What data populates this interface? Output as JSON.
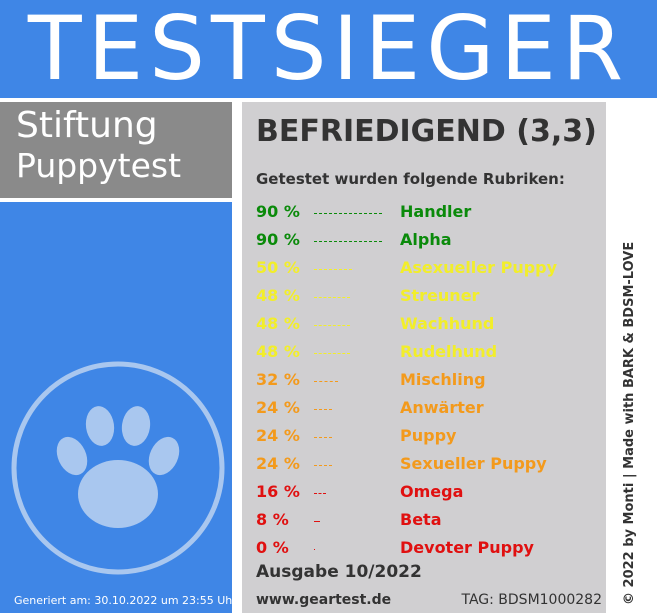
{
  "header": {
    "title": "TESTSIEGER"
  },
  "organization": {
    "line1": "Stiftung",
    "line2": "Puppytest"
  },
  "logo": {
    "icon": "paw-icon"
  },
  "result": {
    "verdict": "BEFRIEDIGEND (3,3)",
    "subtitle": "Getestet wurden folgende Rubriken:",
    "rows": [
      {
        "percent": "90 %",
        "percent_value": 90,
        "category": "Handler",
        "color": "#0a8a0a"
      },
      {
        "percent": "90 %",
        "percent_value": 90,
        "category": "Alpha",
        "color": "#0a8a0a"
      },
      {
        "percent": "50 %",
        "percent_value": 50,
        "category": "Asexueller Puppy",
        "color": "#f2ee2a"
      },
      {
        "percent": "48 %",
        "percent_value": 48,
        "category": "Streuner",
        "color": "#f2ee2a"
      },
      {
        "percent": "48 %",
        "percent_value": 48,
        "category": "Wachhund",
        "color": "#f2ee2a"
      },
      {
        "percent": "48 %",
        "percent_value": 48,
        "category": "Rudelhund",
        "color": "#f2ee2a"
      },
      {
        "percent": "32 %",
        "percent_value": 32,
        "category": "Mischling",
        "color": "#f39a1c"
      },
      {
        "percent": "24 %",
        "percent_value": 24,
        "category": "Anwärter",
        "color": "#f39a1c"
      },
      {
        "percent": "24 %",
        "percent_value": 24,
        "category": "Puppy",
        "color": "#f39a1c"
      },
      {
        "percent": "24 %",
        "percent_value": 24,
        "category": "Sexueller Puppy",
        "color": "#f39a1c"
      },
      {
        "percent": "16 %",
        "percent_value": 16,
        "category": "Omega",
        "color": "#e01010"
      },
      {
        "percent": "8 %",
        "percent_value": 8,
        "category": "Beta",
        "color": "#e01010"
      },
      {
        "percent": "0 %",
        "percent_value": 0,
        "category": "Devoter Puppy",
        "color": "#e01010"
      }
    ],
    "issue": "Ausgabe 10/2022",
    "website": "www.geartest.de",
    "tag": "TAG: BDSM1000282"
  },
  "footer": {
    "generated": "Generiert am: 30.10.2022 um 23:55 Uhr"
  },
  "copyright": "© 2022 by Monti | Made with BARK & BDSM-LOVE",
  "colors": {
    "brand_blue": "#3f86e6",
    "panel_gray": "#d0cfd1",
    "org_gray": "#8a8a8a"
  }
}
